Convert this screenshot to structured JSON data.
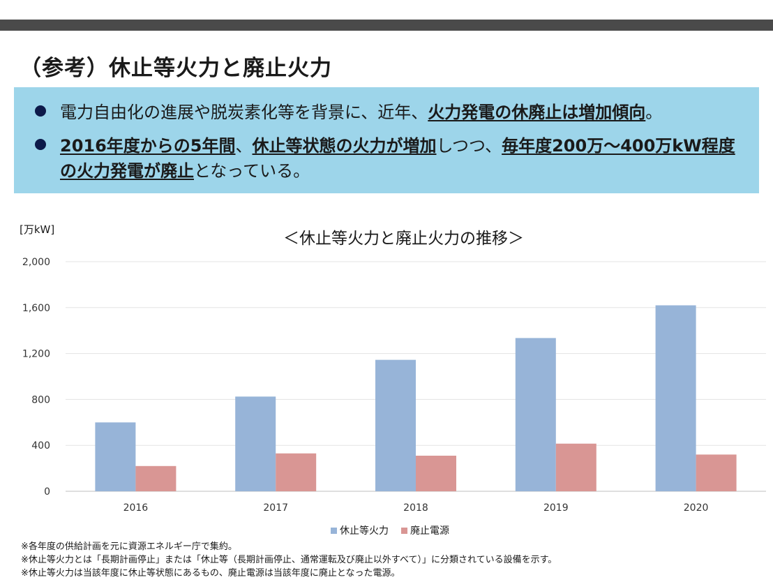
{
  "header": {
    "title": "（参考）休止等火力と廃止火力"
  },
  "summary": {
    "bullet1": {
      "plain": "電力自由化の進展や脱炭素化等を背景に、近年、",
      "bold": "火力発電の休廃止は増加傾向",
      "end": "。"
    },
    "bullet2": {
      "bold1": "2016年度からの5年間",
      "plain1": "、",
      "bold2": "休止等状態の火力が増加",
      "plain2": "しつつ、",
      "bold3": "毎年度200万～400万kW程度の火力発電が廃止",
      "end": "となっている。"
    }
  },
  "chart_data": {
    "type": "bar",
    "title": "＜休止等火力と廃止火力の推移＞",
    "ylabel": "[万kW]",
    "categories": [
      "2016",
      "2017",
      "2018",
      "2019",
      "2020"
    ],
    "series": [
      {
        "name": "休止等火力",
        "values": [
          600,
          825,
          1145,
          1335,
          1620
        ],
        "color": "#97b4d8"
      },
      {
        "name": "廃止電源",
        "values": [
          220,
          330,
          310,
          415,
          320
        ],
        "color": "#d99694"
      }
    ],
    "yticks": [
      "2,000",
      "1,600",
      "1,200",
      "800",
      "400",
      "0"
    ],
    "ylim": [
      0,
      2000
    ],
    "grid": true,
    "legend_position": "bottom"
  },
  "notes": [
    "※各年度の供給計画を元に資源エネルギー庁で集約。",
    "※休止等火力とは「長期計画停止」または「休止等（長期計画停止、通常運転及び廃止以外すべて）」に分類されている設備を示す。",
    "※休止等火力は当該年度に休止等状態にあるもの、廃止電源は当該年度に廃止となった電源。"
  ]
}
